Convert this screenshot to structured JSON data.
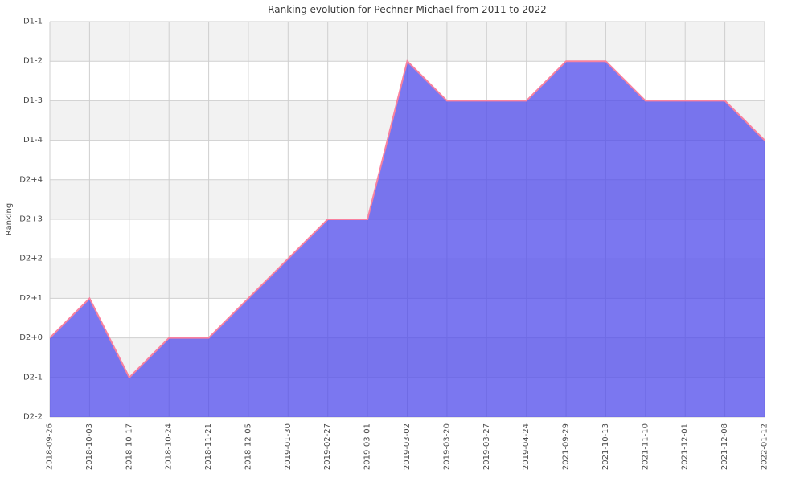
{
  "chart_data": {
    "type": "area",
    "title": "Ranking evolution for Pechner Michael from 2011 to 2022",
    "xlabel": "",
    "ylabel": "Ranking",
    "x": [
      "2018-09-26",
      "2018-10-03",
      "2018-10-17",
      "2018-10-24",
      "2018-11-21",
      "2018-12-05",
      "2019-01-30",
      "2019-02-27",
      "2019-03-01",
      "2019-03-02",
      "2019-03-20",
      "2019-03-27",
      "2019-04-24",
      "2021-09-29",
      "2021-10-13",
      "2021-11-10",
      "2021-12-01",
      "2021-12-08",
      "2022-01-12"
    ],
    "values": [
      "D2+0",
      "D2+1",
      "D2-1",
      "D2+0",
      "D2+0",
      "D2+1",
      "D2+2",
      "D2+3",
      "D2+3",
      "D1-2",
      "D1-3",
      "D1-3",
      "D1-3",
      "D1-2",
      "D1-2",
      "D1-3",
      "D1-3",
      "D1-3",
      "D1-4"
    ],
    "y_levels_top_to_bottom": [
      "D1-1",
      "D1-2",
      "D1-3",
      "D1-4",
      "D2+4",
      "D2+3",
      "D2+2",
      "D2+1",
      "D2+0",
      "D2-1",
      "D2-2"
    ],
    "grid": true,
    "legend": false,
    "colors": {
      "area_fill": "rgba(79,74,235,0.75)",
      "line": "#f8819f",
      "band_light": "#ffffff",
      "band_dark": "#f2f2f2",
      "grid": "#cfcfcf",
      "text": "#4a4a4a",
      "title_text": "#3a3a3a"
    }
  }
}
